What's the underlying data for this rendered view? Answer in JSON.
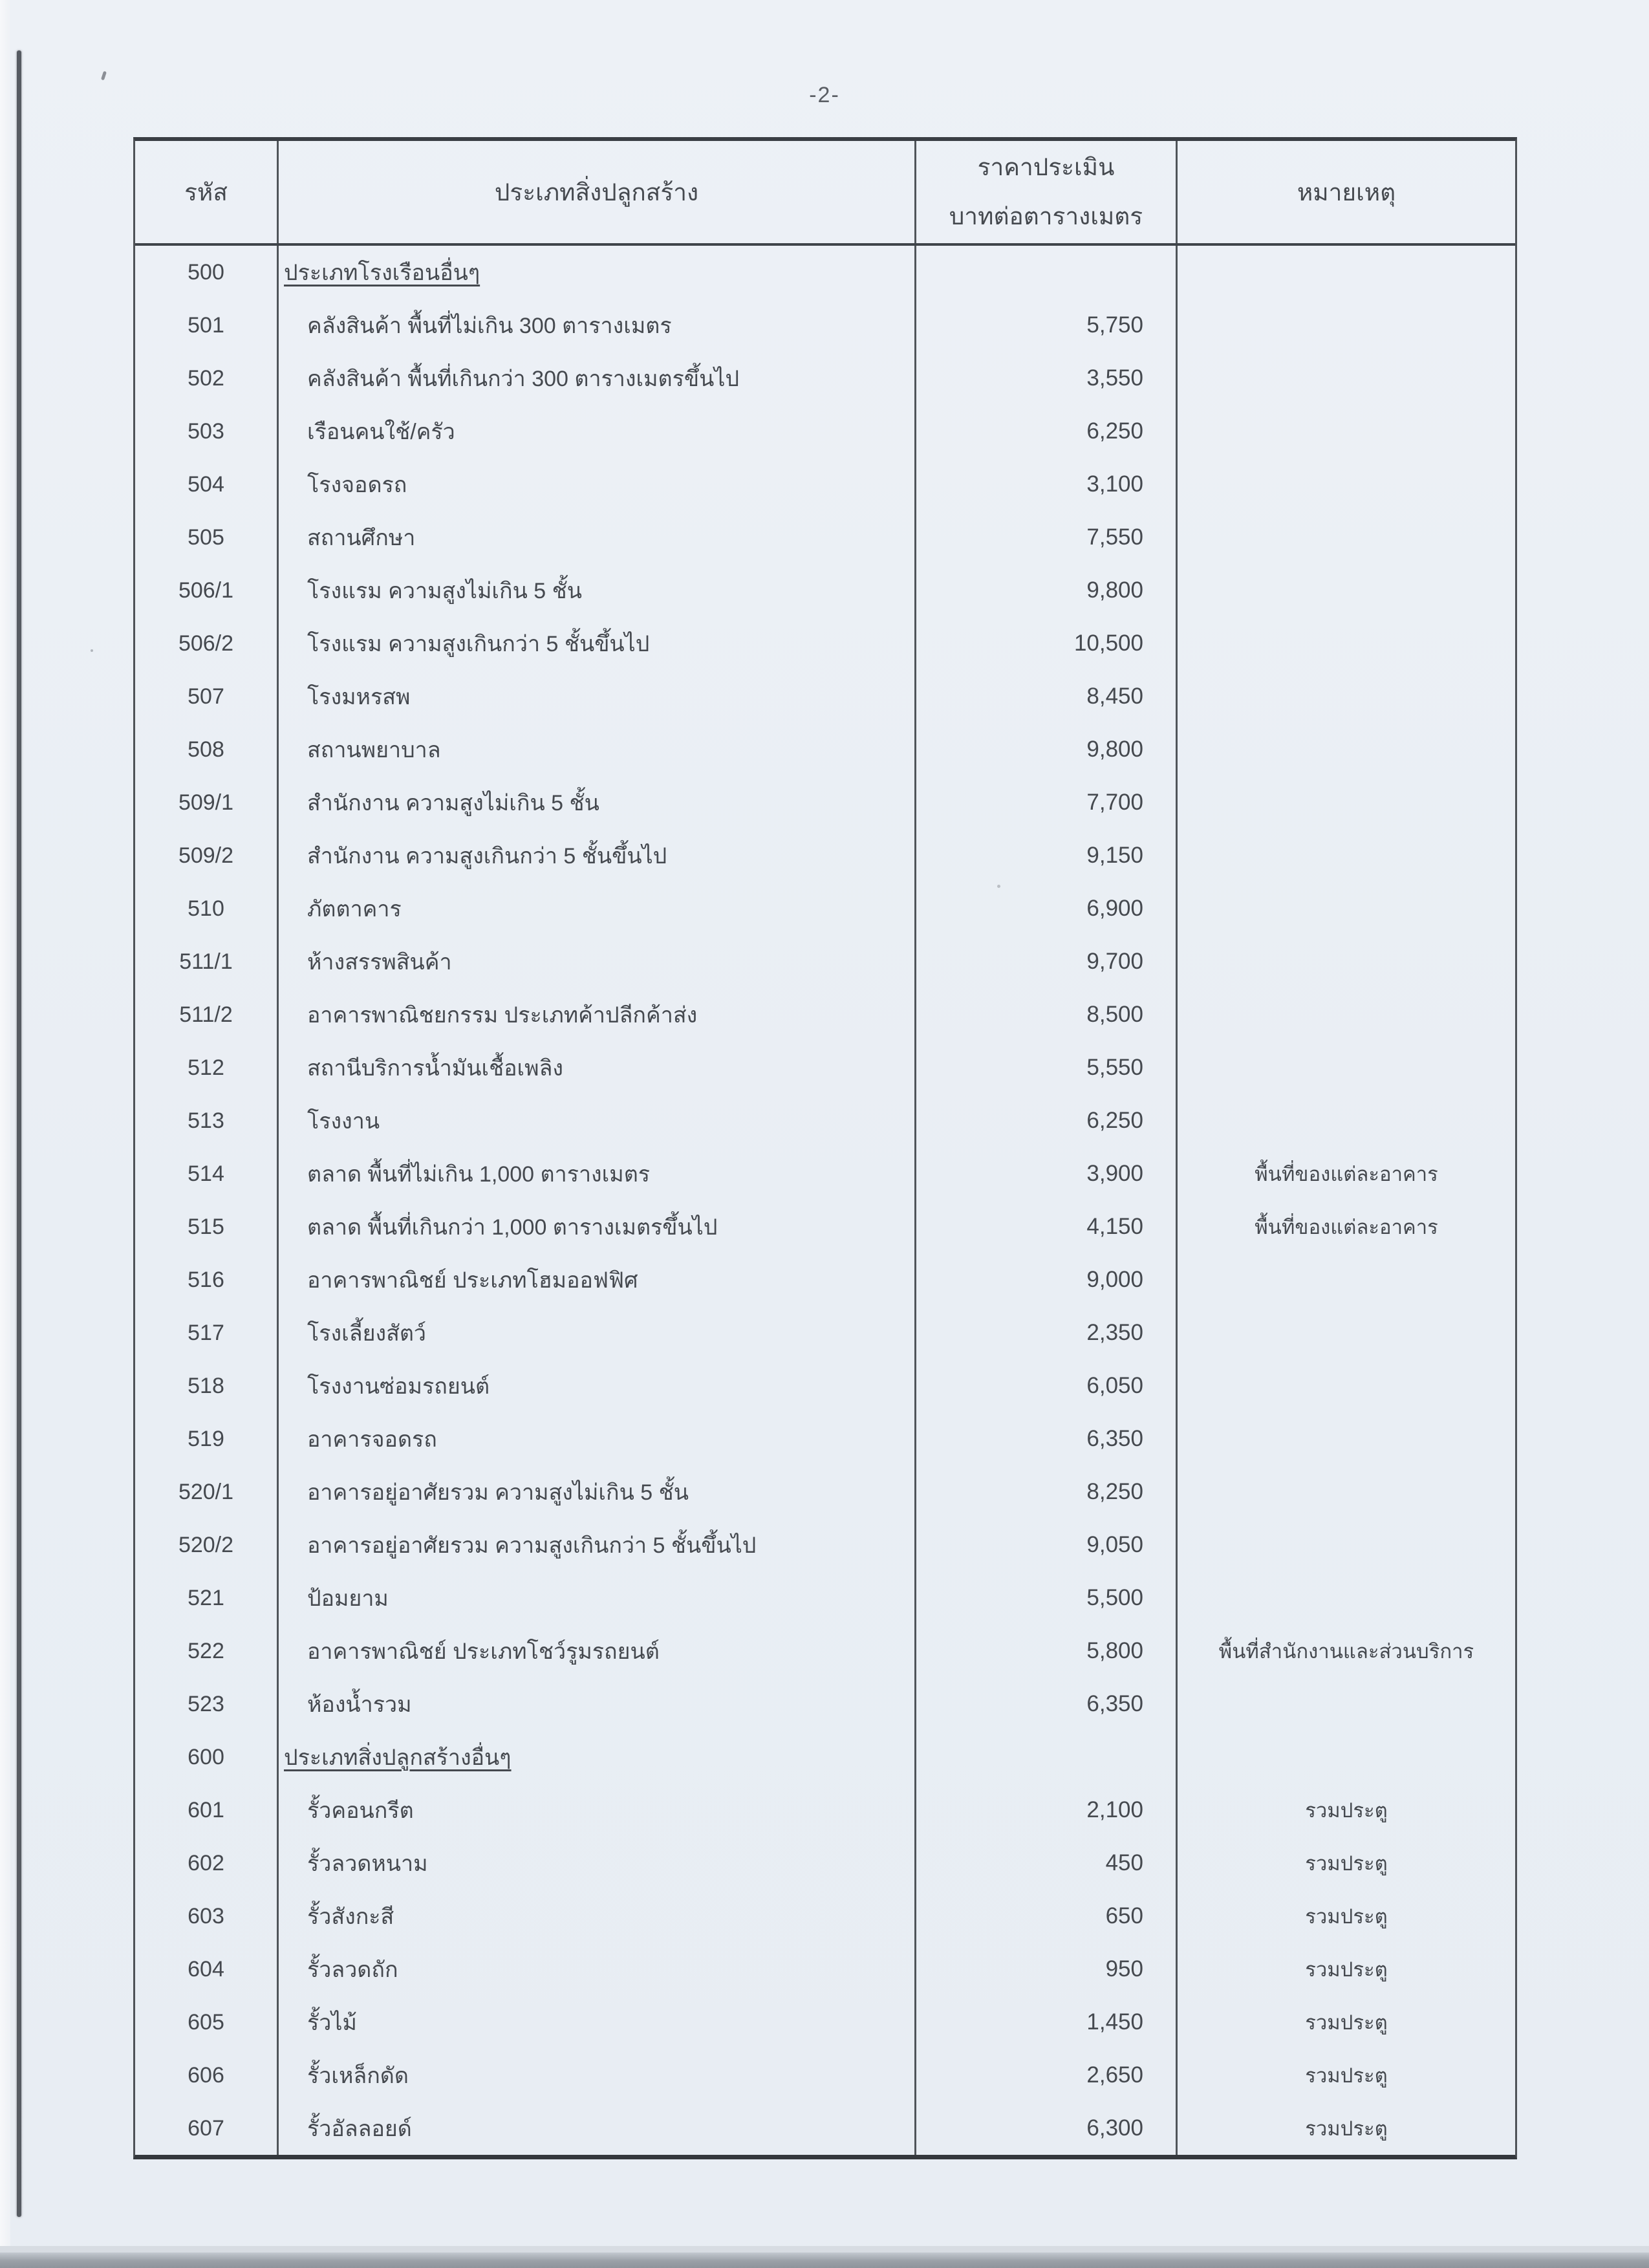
{
  "page": {
    "number_label": "-2-"
  },
  "scan": {
    "paper_color": "#e9eef4",
    "line_color": "#4e5257",
    "text_color": "#45494f"
  },
  "table": {
    "headers": {
      "code": "รหัส",
      "type": "ประเภทสิ่งปลูกสร้าง",
      "price_line1": "ราคาประเมิน",
      "price_line2": "บาทต่อตารางเมตร",
      "remark": "หมายเหตุ"
    },
    "rows": [
      {
        "code": "500",
        "type": "ประเภทโรงเรือนอื่นๆ",
        "price": "",
        "remark": "",
        "category": true
      },
      {
        "code": "501",
        "type": "คลังสินค้า พื้นที่ไม่เกิน 300 ตารางเมตร",
        "price": "5,750",
        "remark": "",
        "category": false
      },
      {
        "code": "502",
        "type": "คลังสินค้า พื้นที่เกินกว่า 300 ตารางเมตรขึ้นไป",
        "price": "3,550",
        "remark": "",
        "category": false
      },
      {
        "code": "503",
        "type": "เรือนคนใช้/ครัว",
        "price": "6,250",
        "remark": "",
        "category": false
      },
      {
        "code": "504",
        "type": "โรงจอดรถ",
        "price": "3,100",
        "remark": "",
        "category": false
      },
      {
        "code": "505",
        "type": "สถานศึกษา",
        "price": "7,550",
        "remark": "",
        "category": false
      },
      {
        "code": "506/1",
        "type": "โรงแรม ความสูงไม่เกิน 5 ชั้น",
        "price": "9,800",
        "remark": "",
        "category": false
      },
      {
        "code": "506/2",
        "type": "โรงแรม ความสูงเกินกว่า 5 ชั้นขึ้นไป",
        "price": "10,500",
        "remark": "",
        "category": false
      },
      {
        "code": "507",
        "type": "โรงมหรสพ",
        "price": "8,450",
        "remark": "",
        "category": false
      },
      {
        "code": "508",
        "type": "สถานพยาบาล",
        "price": "9,800",
        "remark": "",
        "category": false
      },
      {
        "code": "509/1",
        "type": "สำนักงาน ความสูงไม่เกิน 5 ชั้น",
        "price": "7,700",
        "remark": "",
        "category": false
      },
      {
        "code": "509/2",
        "type": "สำนักงาน ความสูงเกินกว่า 5 ชั้นขึ้นไป",
        "price": "9,150",
        "remark": "",
        "category": false
      },
      {
        "code": "510",
        "type": "ภัตตาคาร",
        "price": "6,900",
        "remark": "",
        "category": false
      },
      {
        "code": "511/1",
        "type": "ห้างสรรพสินค้า",
        "price": "9,700",
        "remark": "",
        "category": false
      },
      {
        "code": "511/2",
        "type": "อาคารพาณิชยกรรม ประเภทค้าปลีกค้าส่ง",
        "price": "8,500",
        "remark": "",
        "category": false
      },
      {
        "code": "512",
        "type": "สถานีบริการน้ำมันเชื้อเพลิง",
        "price": "5,550",
        "remark": "",
        "category": false
      },
      {
        "code": "513",
        "type": "โรงงาน",
        "price": "6,250",
        "remark": "",
        "category": false
      },
      {
        "code": "514",
        "type": "ตลาด พื้นที่ไม่เกิน 1,000 ตารางเมตร",
        "price": "3,900",
        "remark": "พื้นที่ของแต่ละอาคาร",
        "category": false
      },
      {
        "code": "515",
        "type": "ตลาด พื้นที่เกินกว่า 1,000 ตารางเมตรขึ้นไป",
        "price": "4,150",
        "remark": "พื้นที่ของแต่ละอาคาร",
        "category": false
      },
      {
        "code": "516",
        "type": "อาคารพาณิชย์ ประเภทโฮมออฟฟิศ",
        "price": "9,000",
        "remark": "",
        "category": false
      },
      {
        "code": "517",
        "type": "โรงเลี้ยงสัตว์",
        "price": "2,350",
        "remark": "",
        "category": false
      },
      {
        "code": "518",
        "type": "โรงงานซ่อมรถยนต์",
        "price": "6,050",
        "remark": "",
        "category": false
      },
      {
        "code": "519",
        "type": "อาคารจอดรถ",
        "price": "6,350",
        "remark": "",
        "category": false
      },
      {
        "code": "520/1",
        "type": "อาคารอยู่อาศัยรวม ความสูงไม่เกิน 5 ชั้น",
        "price": "8,250",
        "remark": "",
        "category": false
      },
      {
        "code": "520/2",
        "type": "อาคารอยู่อาศัยรวม ความสูงเกินกว่า 5 ชั้นขึ้นไป",
        "price": "9,050",
        "remark": "",
        "category": false
      },
      {
        "code": "521",
        "type": "ป้อมยาม",
        "price": "5,500",
        "remark": "",
        "category": false
      },
      {
        "code": "522",
        "type": "อาคารพาณิชย์ ประเภทโชว์รูมรถยนต์",
        "price": "5,800",
        "remark": "พื้นที่สำนักงานและส่วนบริการ",
        "category": false
      },
      {
        "code": "523",
        "type": "ห้องน้ำรวม",
        "price": "6,350",
        "remark": "",
        "category": false
      },
      {
        "code": "600",
        "type": "ประเภทสิ่งปลูกสร้างอื่นๆ",
        "price": "",
        "remark": "",
        "category": true
      },
      {
        "code": "601",
        "type": "รั้วคอนกรีต",
        "price": "2,100",
        "remark": "รวมประตู",
        "category": false
      },
      {
        "code": "602",
        "type": "รั้วลวดหนาม",
        "price": "450",
        "remark": "รวมประตู",
        "category": false
      },
      {
        "code": "603",
        "type": "รั้วสังกะสี",
        "price": "650",
        "remark": "รวมประตู",
        "category": false
      },
      {
        "code": "604",
        "type": "รั้วลวดถัก",
        "price": "950",
        "remark": "รวมประตู",
        "category": false
      },
      {
        "code": "605",
        "type": "รั้วไม้",
        "price": "1,450",
        "remark": "รวมประตู",
        "category": false
      },
      {
        "code": "606",
        "type": "รั้วเหล็กดัด",
        "price": "2,650",
        "remark": "รวมประตู",
        "category": false
      },
      {
        "code": "607",
        "type": "รั้วอัลลอยด์",
        "price": "6,300",
        "remark": "รวมประตู",
        "category": false
      }
    ]
  }
}
